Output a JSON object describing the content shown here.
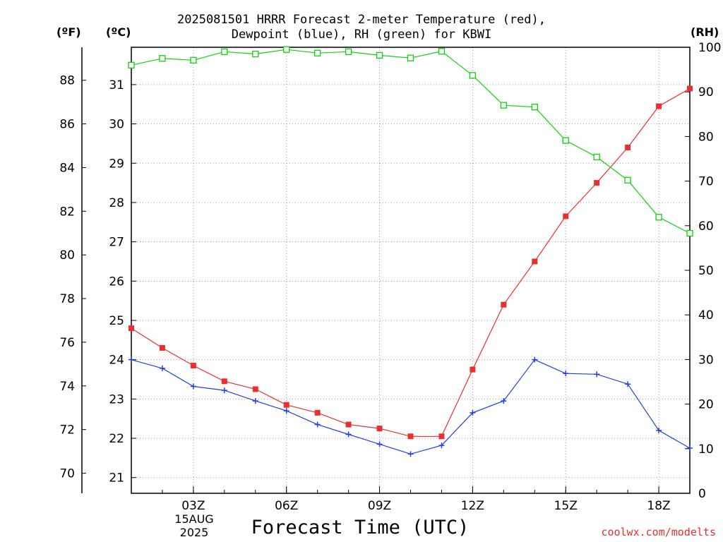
{
  "title": {
    "line1": "2025081501 HRRR Forecast 2-meter Temperature (red),",
    "line2": "Dewpoint (blue), RH (green) for KBWI"
  },
  "units": {
    "fahrenheit": "(ºF)",
    "celsius": "(ºC)",
    "rh": "(RH)"
  },
  "xaxis_title": "Forecast Time (UTC)",
  "date_labels": {
    "day": "15AUG",
    "year": "2025"
  },
  "watermark": "coolwx.com/modelts",
  "colors": {
    "temperature": "#e83030",
    "dewpoint": "#2040e0",
    "rh": "#10d010"
  },
  "chart_data": {
    "type": "line",
    "title": "2025081501 HRRR Forecast 2-meter Temperature (red), Dewpoint (blue), RH (green) for KBWI",
    "xlabel": "Forecast Time (UTC)",
    "x": [
      "01Z",
      "02Z",
      "03Z",
      "04Z",
      "05Z",
      "06Z",
      "07Z",
      "08Z",
      "09Z",
      "10Z",
      "11Z",
      "12Z",
      "13Z",
      "14Z",
      "15Z",
      "16Z",
      "17Z",
      "18Z",
      "19Z"
    ],
    "x_tick_labels": [
      "03Z",
      "06Z",
      "09Z",
      "12Z",
      "15Z",
      "18Z"
    ],
    "celsius_axis": {
      "label": "(ºC)",
      "ylim": [
        20.6,
        31.95
      ],
      "ticks": [
        21,
        22,
        23,
        24,
        25,
        26,
        27,
        28,
        29,
        30,
        31
      ]
    },
    "fahrenheit_axis": {
      "label": "(ºF)",
      "ticks": [
        70,
        72,
        74,
        76,
        78,
        80,
        82,
        84,
        86,
        88
      ]
    },
    "rh_axis": {
      "label": "(RH)",
      "ylim": [
        0,
        100
      ],
      "ticks": [
        0,
        10,
        20,
        30,
        40,
        50,
        60,
        70,
        80,
        90,
        100
      ]
    },
    "grid": true,
    "series": [
      {
        "name": "Temperature",
        "color": "#e83030",
        "axis": "celsius",
        "marker": "square-filled",
        "values": [
          24.8,
          24.3,
          23.85,
          23.45,
          23.25,
          22.85,
          22.65,
          22.35,
          22.25,
          22.05,
          22.05,
          23.75,
          25.4,
          26.5,
          27.65,
          28.5,
          29.4,
          30.45,
          30.9
        ]
      },
      {
        "name": "Dewpoint",
        "color": "#2040e0",
        "axis": "celsius",
        "marker": "plus",
        "values": [
          24.0,
          23.78,
          23.32,
          23.22,
          22.95,
          22.7,
          22.35,
          22.1,
          21.85,
          21.6,
          21.82,
          22.65,
          22.95,
          24.0,
          23.65,
          23.63,
          23.38,
          22.2,
          21.75
        ]
      },
      {
        "name": "RH",
        "color": "#10d010",
        "axis": "rh",
        "marker": "square-open",
        "values": [
          96,
          97.5,
          97.1,
          99,
          98.5,
          99.5,
          98.7,
          99,
          98.2,
          97.6,
          99.1,
          93.7,
          87,
          86.6,
          79.1,
          75.4,
          70.2,
          61.9,
          58.3
        ]
      }
    ]
  }
}
